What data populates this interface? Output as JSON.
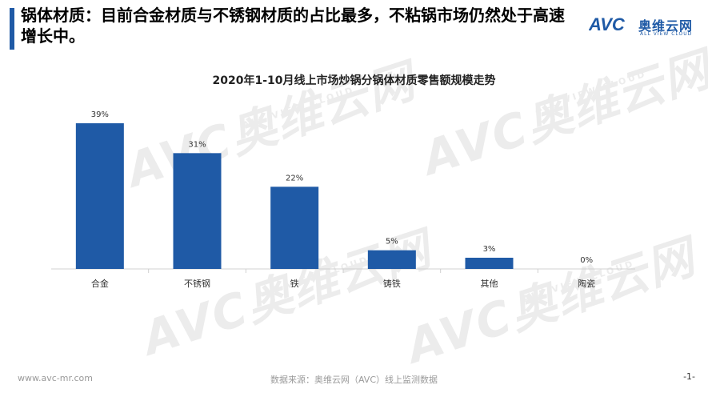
{
  "headline": "锅体材质：目前合金材质与不锈钢材质的占比最多，不粘锅市场仍然处于高速增长中。",
  "logo": {
    "cn": "奥维云网",
    "en": "ALL VIEW CLOUD",
    "mark": "AVC",
    "color": "#1f5aa6"
  },
  "watermark": {
    "text": "AVC奥维云网",
    "sub": "ALL VIEW CLOUD"
  },
  "chart_data": {
    "type": "bar",
    "title": "2020年1-10月线上市场炒锅分锅体材质零售额规模走势",
    "categories": [
      "合金",
      "不锈钢",
      "铁",
      "铸铁",
      "其他",
      "陶瓷"
    ],
    "values": [
      39,
      31,
      22,
      5,
      3,
      0
    ],
    "value_labels": [
      "39%",
      "31%",
      "22%",
      "5%",
      "3%",
      "0%"
    ],
    "unit": "%",
    "ylim": [
      0,
      42
    ],
    "bar_color": "#1f5aa6",
    "grid": false,
    "legend": "none"
  },
  "footer": {
    "website": "www.avc-mr.com",
    "source": "数据来源：奥维云网（AVC）线上监测数据",
    "page": "-1-"
  }
}
